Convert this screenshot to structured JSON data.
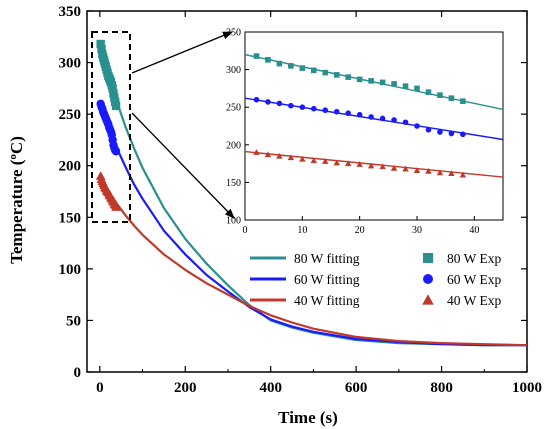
{
  "chart_data": [
    {
      "type": "line",
      "xlabel": "Time (s)",
      "ylabel_text": "Temperature (",
      "ylabel_sup": "o",
      "ylabel_unit": "C)",
      "xlim": [
        -30,
        1000
      ],
      "ylim": [
        0,
        350
      ],
      "xticks": [
        0,
        200,
        400,
        600,
        800,
        1000
      ],
      "yticks": [
        0,
        50,
        100,
        150,
        200,
        250,
        300,
        350
      ],
      "grid": false,
      "legend_position": "lower-right",
      "series": [
        {
          "name": "80 W fitting",
          "kind": "line",
          "color": "#2a8f8f",
          "x": [
            0,
            20,
            40,
            60,
            80,
            100,
            150,
            200,
            250,
            300,
            350,
            400,
            450,
            500,
            600,
            700,
            800,
            900,
            1000
          ],
          "y": [
            320,
            289,
            262,
            238,
            217,
            198,
            159,
            129,
            105,
            84,
            65,
            50,
            43,
            38,
            31,
            28,
            27,
            26,
            26
          ]
        },
        {
          "name": "60 W fitting",
          "kind": "line",
          "color": "#1a1aff",
          "x": [
            0,
            20,
            40,
            60,
            80,
            100,
            150,
            200,
            250,
            300,
            350,
            400,
            450,
            500,
            600,
            700,
            800,
            900,
            1000
          ],
          "y": [
            262,
            238,
            217,
            199,
            182,
            168,
            137,
            114,
            94,
            78,
            63,
            51,
            44,
            39,
            32,
            29,
            27,
            26,
            26
          ]
        },
        {
          "name": "40 W fitting",
          "kind": "line",
          "color": "#c0392b",
          "x": [
            0,
            20,
            40,
            60,
            80,
            100,
            150,
            200,
            250,
            300,
            350,
            400,
            450,
            500,
            600,
            700,
            800,
            900,
            1000
          ],
          "y": [
            191,
            176,
            163,
            152,
            142,
            133,
            114,
            99,
            86,
            75,
            64,
            55,
            48,
            42,
            34,
            30,
            28,
            27,
            26
          ]
        },
        {
          "name": "80 W Exp",
          "kind": "scatter",
          "marker": "square",
          "color": "#2a8f8f",
          "x": [
            2,
            4,
            6,
            8,
            10,
            12,
            14,
            16,
            18,
            20,
            22,
            24,
            26,
            28,
            30,
            32,
            34,
            36,
            38
          ],
          "y": [
            318,
            313,
            308,
            305,
            302,
            299,
            296,
            293,
            290,
            287,
            285,
            283,
            281,
            278,
            275,
            270,
            266,
            262,
            258
          ]
        },
        {
          "name": "60 W Exp",
          "kind": "scatter",
          "marker": "circle",
          "color": "#1a1aff",
          "x": [
            2,
            4,
            6,
            8,
            10,
            12,
            14,
            16,
            18,
            20,
            22,
            24,
            26,
            28,
            30,
            32,
            34,
            36,
            38
          ],
          "y": [
            260,
            257,
            255,
            252,
            250,
            248,
            246,
            244,
            242,
            240,
            237,
            235,
            233,
            230,
            225,
            220,
            217,
            215,
            214
          ]
        },
        {
          "name": "40 W Exp",
          "kind": "scatter",
          "marker": "triangle",
          "color": "#c0392b",
          "x": [
            2,
            4,
            6,
            8,
            10,
            12,
            14,
            16,
            18,
            20,
            22,
            24,
            26,
            28,
            30,
            32,
            34,
            36,
            38
          ],
          "y": [
            190,
            187,
            185,
            183,
            181,
            179,
            178,
            176,
            175,
            174,
            172,
            171,
            169,
            168,
            166,
            165,
            163,
            162,
            160
          ]
        }
      ]
    },
    {
      "type": "line",
      "role": "inset",
      "xlim": [
        0,
        45
      ],
      "ylim": [
        100,
        350
      ],
      "xticks": [
        0,
        10,
        20,
        30,
        40
      ],
      "yticks": [
        100,
        150,
        200,
        250,
        300,
        350
      ],
      "grid": false,
      "series": [
        {
          "kind": "line",
          "color": "#2a8f8f",
          "x": [
            0,
            45
          ],
          "y": [
            320,
            247
          ]
        },
        {
          "kind": "line",
          "color": "#1a1aff",
          "x": [
            0,
            45
          ],
          "y": [
            262,
            207
          ]
        },
        {
          "kind": "line",
          "color": "#c0392b",
          "x": [
            0,
            45
          ],
          "y": [
            191,
            157
          ]
        },
        {
          "kind": "scatter",
          "marker": "square",
          "color": "#2a8f8f",
          "x": [
            2,
            4,
            6,
            8,
            10,
            12,
            14,
            16,
            18,
            20,
            22,
            24,
            26,
            28,
            30,
            32,
            34,
            36,
            38
          ],
          "y": [
            318,
            313,
            308,
            305,
            302,
            299,
            296,
            293,
            290,
            287,
            285,
            283,
            281,
            278,
            275,
            270,
            266,
            262,
            258
          ]
        },
        {
          "kind": "scatter",
          "marker": "circle",
          "color": "#1a1aff",
          "x": [
            2,
            4,
            6,
            8,
            10,
            12,
            14,
            16,
            18,
            20,
            22,
            24,
            26,
            28,
            30,
            32,
            34,
            36,
            38
          ],
          "y": [
            260,
            257,
            255,
            252,
            250,
            248,
            246,
            244,
            242,
            240,
            237,
            235,
            233,
            230,
            225,
            220,
            217,
            215,
            214
          ]
        },
        {
          "kind": "scatter",
          "marker": "triangle",
          "color": "#c0392b",
          "x": [
            2,
            4,
            6,
            8,
            10,
            12,
            14,
            16,
            18,
            20,
            22,
            24,
            26,
            28,
            30,
            32,
            34,
            36,
            38
          ],
          "y": [
            190,
            187,
            185,
            183,
            181,
            179,
            178,
            176,
            175,
            174,
            172,
            171,
            169,
            168,
            166,
            165,
            163,
            162,
            160
          ]
        }
      ]
    }
  ]
}
